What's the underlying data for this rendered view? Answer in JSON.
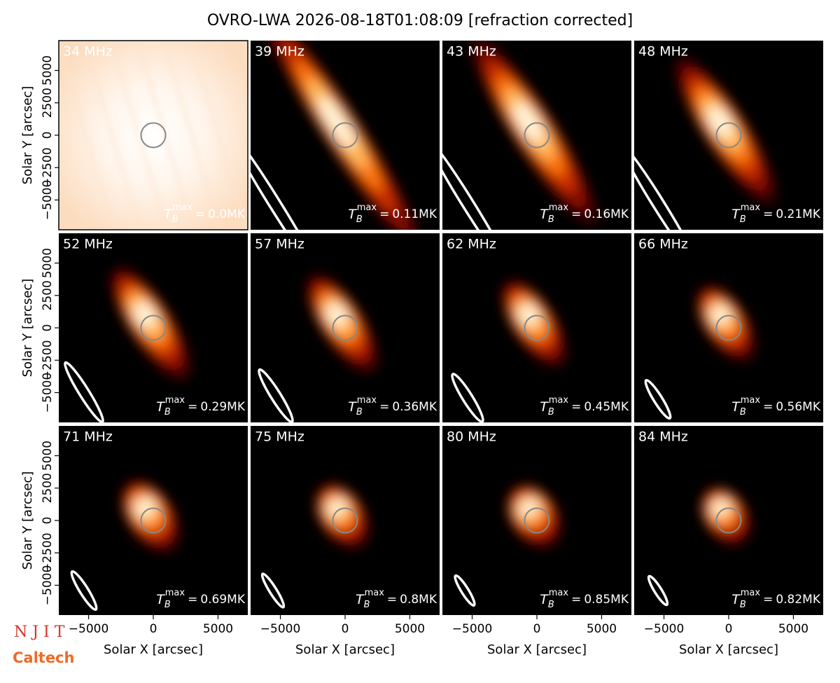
{
  "title": "OVRO-LWA 2026-08-18T01:08:09 [refraction corrected]",
  "logos": [
    "N J I T",
    "Caltech"
  ],
  "tb_symbol": {
    "base": "T",
    "sub": "B",
    "sup": "max",
    "eq": "="
  },
  "xlabel": "Solar X [arcsec]",
  "ylabel": "Solar Y [arcsec]",
  "xlim": [
    -7300,
    7300
  ],
  "ylim": [
    -7300,
    7300
  ],
  "xticks": [
    {
      "value": -5000,
      "label": "−5000"
    },
    0,
    5000
  ],
  "yticks": [
    {
      "value": -5000,
      "label": "−5000"
    },
    {
      "value": -2500,
      "label": "−2500"
    },
    0,
    2500,
    5000
  ],
  "chart_data": [
    {
      "type": "image",
      "title": "34 MHz",
      "tb_max": "0.0MK"
    },
    {
      "type": "image",
      "title": "39 MHz",
      "tb_max": "0.11MK"
    },
    {
      "type": "image",
      "title": "43 MHz",
      "tb_max": "0.16MK"
    },
    {
      "type": "image",
      "title": "48 MHz",
      "tb_max": "0.21MK"
    },
    {
      "type": "image",
      "title": "52 MHz",
      "tb_max": "0.29MK"
    },
    {
      "type": "image",
      "title": "57 MHz",
      "tb_max": "0.36MK"
    },
    {
      "type": "image",
      "title": "62 MHz",
      "tb_max": "0.45MK"
    },
    {
      "type": "image",
      "title": "66 MHz",
      "tb_max": "0.56MK"
    },
    {
      "type": "image",
      "title": "71 MHz",
      "tb_max": "0.69MK"
    },
    {
      "type": "image",
      "title": "75 MHz",
      "tb_max": "0.8MK"
    },
    {
      "type": "image",
      "title": "80 MHz",
      "tb_max": "0.85MK"
    },
    {
      "type": "image",
      "title": "84 MHz",
      "tb_max": "0.82MK"
    }
  ]
}
